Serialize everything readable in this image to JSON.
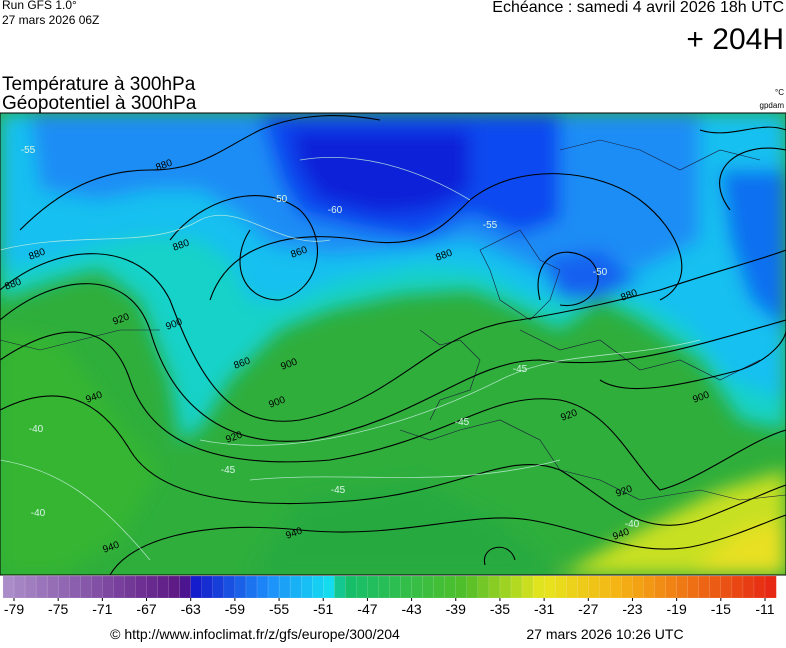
{
  "header": {
    "run": "Run GFS 1.0°",
    "run_date": "27 mars 2026 06Z",
    "echeance": "Echéance : samedi 4 avril 2026 18h UTC",
    "lead": "+ 204H"
  },
  "titles": {
    "line1": "Température à 300hPa",
    "line2": "Géopotentiel à 300hPa",
    "unit1": "°C",
    "unit2": "gpdam"
  },
  "map": {
    "contour_labels": [
      "880",
      "880",
      "860",
      "880",
      "900",
      "920",
      "880",
      "900",
      "860",
      "880",
      "900",
      "920",
      "940",
      "940",
      "940",
      "880",
      "920",
      "900",
      "920",
      "940"
    ],
    "isotherm_labels": [
      "-55",
      "-60",
      "-50",
      "-55",
      "-45",
      "-40",
      "-45",
      "-40",
      "-45",
      "-50",
      "-45",
      "-40"
    ]
  },
  "colorbar": {
    "ticks": [
      -79,
      -75,
      -71,
      -67,
      -63,
      -59,
      -55,
      -51,
      -47,
      -43,
      -39,
      -35,
      -31,
      -27,
      -23,
      -19,
      -15,
      -11
    ]
  },
  "footer": {
    "source": "© http://www.infoclimat.fr/z/gfs/europe/300/204",
    "timestamp": "27 mars 2026 10:26 UTC"
  }
}
